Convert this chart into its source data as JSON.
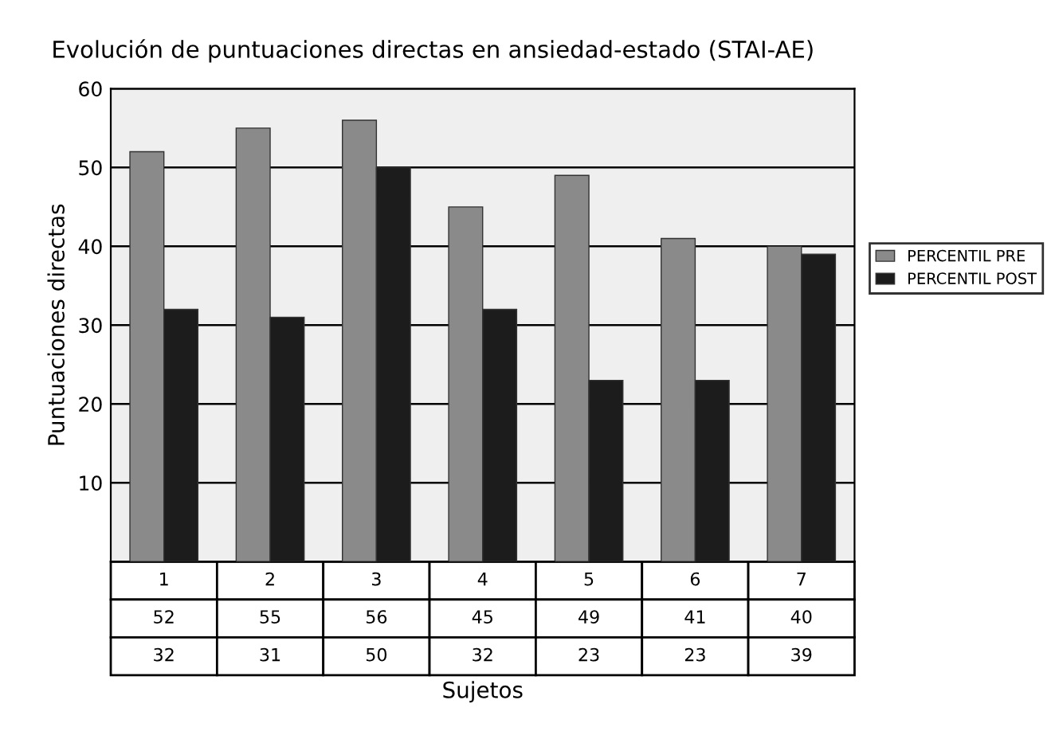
{
  "chart_data": {
    "type": "bar",
    "title": "Evolución de puntuaciones directas en ansiedad-estado (STAI-AE)",
    "xlabel": "Sujetos",
    "ylabel": "Puntuaciones directas",
    "categories": [
      "1",
      "2",
      "3",
      "4",
      "5",
      "6",
      "7"
    ],
    "series": [
      {
        "name": "PERCENTIL PRE",
        "color": "#8a8a8a",
        "values": [
          52,
          55,
          56,
          45,
          49,
          41,
          40
        ]
      },
      {
        "name": "PERCENTIL POST",
        "color": "#1c1c1c",
        "values": [
          32,
          31,
          50,
          32,
          23,
          23,
          39
        ]
      }
    ],
    "ylim": [
      0,
      60
    ],
    "yticks": [
      10,
      20,
      30,
      40,
      50,
      60
    ],
    "grid": "y",
    "legend": "right",
    "data_labels": true
  }
}
